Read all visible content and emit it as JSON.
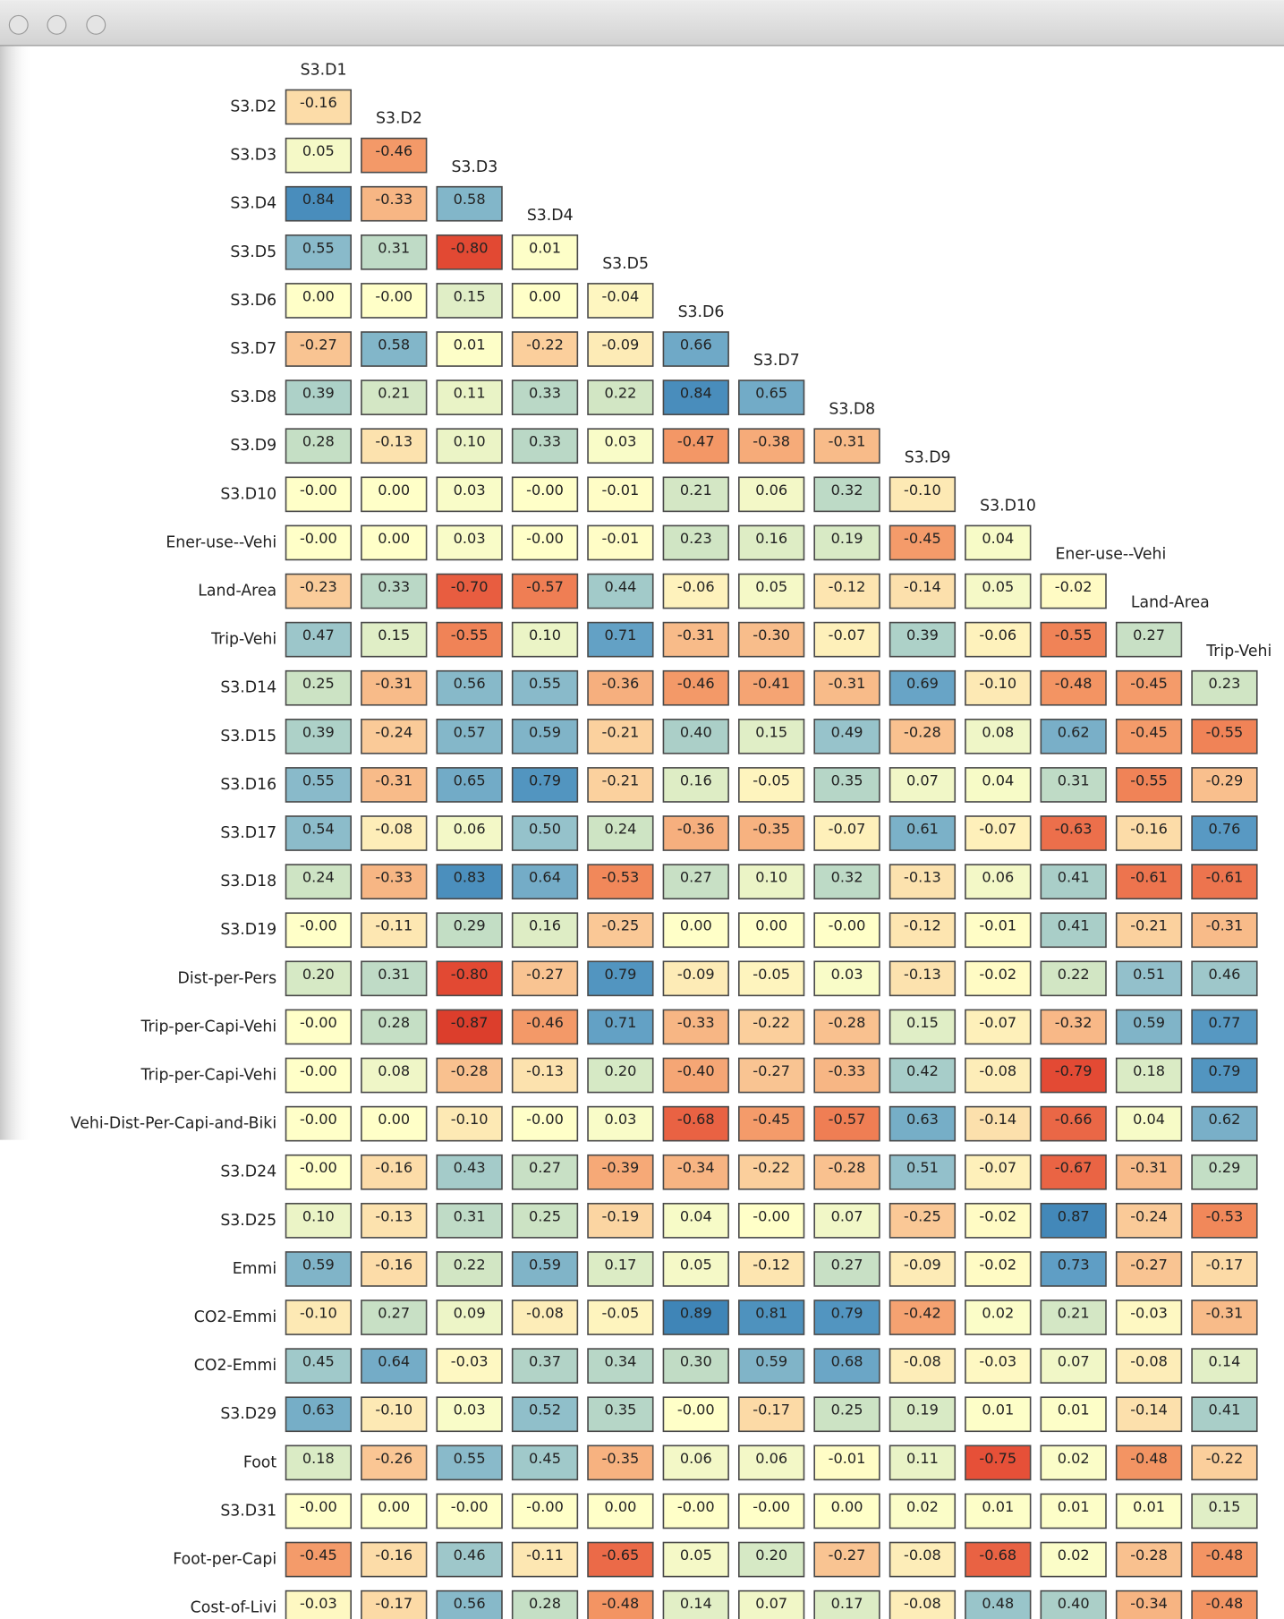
{
  "chart_data": {
    "type": "heatmap",
    "cols": [
      "S3.D1",
      "S3.D2",
      "S3.D3",
      "S3.D4",
      "S3.D5",
      "S3.D6",
      "S3.D7",
      "S3.D8",
      "S3.D9",
      "S3.D10",
      "Ener-use--Vehi",
      "Land-Area",
      "Trip-Vehi"
    ],
    "rows": [
      "S3.D2",
      "S3.D3",
      "S3.D4",
      "S3.D5",
      "S3.D6",
      "S3.D7",
      "S3.D8",
      "S3.D9",
      "S3.D10",
      "Ener-use--Vehi",
      "Land-Area",
      "Trip-Vehi",
      "S3.D14",
      "S3.D15",
      "S3.D16",
      "S3.D17",
      "S3.D18",
      "S3.D19",
      "Dist-per-Pers",
      "Trip-per-Capi-Vehi",
      "Trip-per-Capi-Vehi",
      "Vehi-Dist-Per-Capi-and-Biki",
      "S3.D24",
      "S3.D25",
      "Emmi",
      "CO2-Emmi",
      "CO2-Emmi",
      "S3.D29",
      "Foot",
      "S3.D31",
      "Foot-per-Capi",
      "Cost-of-Livi"
    ],
    "values": [
      [
        -0.16
      ],
      [
        0.05,
        -0.46
      ],
      [
        0.84,
        -0.33,
        0.58
      ],
      [
        0.55,
        0.31,
        -0.8,
        0.01
      ],
      [
        0.0,
        -0.0,
        0.15,
        0.0,
        -0.04
      ],
      [
        -0.27,
        0.58,
        0.01,
        -0.22,
        -0.09,
        0.66
      ],
      [
        0.39,
        0.21,
        0.11,
        0.33,
        0.22,
        0.84,
        0.65
      ],
      [
        0.28,
        -0.13,
        0.1,
        0.33,
        0.03,
        -0.47,
        -0.38,
        -0.31
      ],
      [
        -0.0,
        0.0,
        0.03,
        -0.0,
        -0.01,
        0.21,
        0.06,
        0.32,
        -0.1
      ],
      [
        -0.0,
        0.0,
        0.03,
        -0.0,
        -0.01,
        0.23,
        0.16,
        0.19,
        -0.45,
        0.04
      ],
      [
        -0.23,
        0.33,
        -0.7,
        -0.57,
        0.44,
        -0.06,
        0.05,
        -0.12,
        -0.14,
        0.05,
        -0.02
      ],
      [
        0.47,
        0.15,
        -0.55,
        0.1,
        0.71,
        -0.31,
        -0.3,
        -0.07,
        0.39,
        -0.06,
        -0.55,
        0.27
      ],
      [
        0.25,
        -0.31,
        0.56,
        0.55,
        -0.36,
        -0.46,
        -0.41,
        -0.31,
        0.69,
        -0.1,
        -0.48,
        -0.45,
        0.23
      ],
      [
        0.39,
        -0.24,
        0.57,
        0.59,
        -0.21,
        0.4,
        0.15,
        0.49,
        -0.28,
        0.08,
        0.62,
        -0.45,
        -0.55
      ],
      [
        0.55,
        -0.31,
        0.65,
        0.79,
        -0.21,
        0.16,
        -0.05,
        0.35,
        0.07,
        0.04,
        0.31,
        -0.55,
        -0.29
      ],
      [
        0.54,
        -0.08,
        0.06,
        0.5,
        0.24,
        -0.36,
        -0.35,
        -0.07,
        0.61,
        -0.07,
        -0.63,
        -0.16,
        0.76
      ],
      [
        0.24,
        -0.33,
        0.83,
        0.64,
        -0.53,
        0.27,
        0.1,
        0.32,
        -0.13,
        0.06,
        0.41,
        -0.61,
        -0.61
      ],
      [
        -0.0,
        -0.11,
        0.29,
        0.16,
        -0.25,
        0.0,
        0.0,
        -0.0,
        -0.12,
        -0.01,
        0.41,
        -0.21,
        -0.31
      ],
      [
        0.2,
        0.31,
        -0.8,
        -0.27,
        0.79,
        -0.09,
        -0.05,
        0.03,
        -0.13,
        -0.02,
        0.22,
        0.51,
        0.46
      ],
      [
        -0.0,
        0.28,
        -0.87,
        -0.46,
        0.71,
        -0.33,
        -0.22,
        -0.28,
        0.15,
        -0.07,
        -0.32,
        0.59,
        0.77
      ],
      [
        -0.0,
        0.08,
        -0.28,
        -0.13,
        0.2,
        -0.4,
        -0.27,
        -0.33,
        0.42,
        -0.08,
        -0.79,
        0.18,
        0.79
      ],
      [
        -0.0,
        0.0,
        -0.1,
        -0.0,
        0.03,
        -0.68,
        -0.45,
        -0.57,
        0.63,
        -0.14,
        -0.66,
        0.04,
        0.62
      ],
      [
        -0.0,
        -0.16,
        0.43,
        0.27,
        -0.39,
        -0.34,
        -0.22,
        -0.28,
        0.51,
        -0.07,
        -0.67,
        -0.31,
        0.29
      ],
      [
        0.1,
        -0.13,
        0.31,
        0.25,
        -0.19,
        0.04,
        -0.0,
        0.07,
        -0.25,
        -0.02,
        0.87,
        -0.24,
        -0.53
      ],
      [
        0.59,
        -0.16,
        0.22,
        0.59,
        0.17,
        0.05,
        -0.12,
        0.27,
        -0.09,
        -0.02,
        0.73,
        -0.27,
        -0.17
      ],
      [
        -0.1,
        0.27,
        0.09,
        -0.08,
        -0.05,
        0.89,
        0.81,
        0.79,
        -0.42,
        0.02,
        0.21,
        -0.03,
        -0.31
      ],
      [
        0.45,
        0.64,
        -0.03,
        0.37,
        0.34,
        0.3,
        0.59,
        0.68,
        -0.08,
        -0.03,
        0.07,
        -0.08,
        0.14
      ],
      [
        0.63,
        -0.1,
        0.03,
        0.52,
        0.35,
        -0.0,
        -0.17,
        0.25,
        0.19,
        0.01,
        0.01,
        -0.14,
        0.41
      ],
      [
        0.18,
        -0.26,
        0.55,
        0.45,
        -0.35,
        0.06,
        0.06,
        -0.01,
        0.11,
        -0.75,
        0.02,
        -0.48,
        -0.22
      ],
      [
        -0.0,
        0.0,
        -0.0,
        -0.0,
        0.0,
        -0.0,
        -0.0,
        0.0,
        0.02,
        0.01,
        0.01,
        0.01,
        0.15
      ],
      [
        -0.45,
        -0.16,
        0.46,
        -0.11,
        -0.65,
        0.05,
        0.2,
        -0.27,
        -0.08,
        -0.68,
        0.02,
        -0.28,
        -0.48
      ],
      [
        -0.03,
        -0.17,
        0.56,
        0.28,
        -0.48,
        0.14,
        0.07,
        0.17,
        -0.08,
        0.48,
        0.4,
        -0.34,
        -0.48
      ]
    ],
    "value_labels": [
      [
        "-0.16"
      ],
      [
        "0.05",
        "-0.46"
      ],
      [
        "0.84",
        "-0.33",
        "0.58"
      ],
      [
        "0.55",
        "0.31",
        "-0.80",
        "0.01"
      ],
      [
        "0.00",
        "-0.00",
        "0.15",
        "0.00",
        "-0.04"
      ],
      [
        "-0.27",
        "0.58",
        "0.01",
        "-0.22",
        "-0.09",
        "0.66"
      ],
      [
        "0.39",
        "0.21",
        "0.11",
        "0.33",
        "0.22",
        "0.84",
        "0.65"
      ],
      [
        "0.28",
        "-0.13",
        "0.10",
        "0.33",
        "0.03",
        "-0.47",
        "-0.38",
        "-0.31"
      ],
      [
        "-0.00",
        "0.00",
        "0.03",
        "-0.00",
        "-0.01",
        "0.21",
        "0.06",
        "0.32",
        "-0.10"
      ],
      [
        "-0.00",
        "0.00",
        "0.03",
        "-0.00",
        "-0.01",
        "0.23",
        "0.16",
        "0.19",
        "-0.45",
        "0.04"
      ],
      [
        "-0.23",
        "0.33",
        "-0.70",
        "-0.57",
        "0.44",
        "-0.06",
        "0.05",
        "-0.12",
        "-0.14",
        "0.05",
        "-0.02"
      ],
      [
        "0.47",
        "0.15",
        "-0.55",
        "0.10",
        "0.71",
        "-0.31",
        "-0.30",
        "-0.07",
        "0.39",
        "-0.06",
        "-0.55",
        "0.27"
      ],
      [
        "0.25",
        "-0.31",
        "0.56",
        "0.55",
        "-0.36",
        "-0.46",
        "-0.41",
        "-0.31",
        "0.69",
        "-0.10",
        "-0.48",
        "-0.45",
        "0.23"
      ],
      [
        "0.39",
        "-0.24",
        "0.57",
        "0.59",
        "-0.21",
        "0.40",
        "0.15",
        "0.49",
        "-0.28",
        "0.08",
        "0.62",
        "-0.45",
        "-0.55"
      ],
      [
        "0.55",
        "-0.31",
        "0.65",
        "0.79",
        "-0.21",
        "0.16",
        "-0.05",
        "0.35",
        "0.07",
        "0.04",
        "0.31",
        "-0.55",
        "-0.29"
      ],
      [
        "0.54",
        "-0.08",
        "0.06",
        "0.50",
        "0.24",
        "-0.36",
        "-0.35",
        "-0.07",
        "0.61",
        "-0.07",
        "-0.63",
        "-0.16",
        "0.76"
      ],
      [
        "0.24",
        "-0.33",
        "0.83",
        "0.64",
        "-0.53",
        "0.27",
        "0.10",
        "0.32",
        "-0.13",
        "0.06",
        "0.41",
        "-0.61",
        "-0.61"
      ],
      [
        "-0.00",
        "-0.11",
        "0.29",
        "0.16",
        "-0.25",
        "0.00",
        "0.00",
        "-0.00",
        "-0.12",
        "-0.01",
        "0.41",
        "-0.21",
        "-0.31"
      ],
      [
        "0.20",
        "0.31",
        "-0.80",
        "-0.27",
        "0.79",
        "-0.09",
        "-0.05",
        "0.03",
        "-0.13",
        "-0.02",
        "0.22",
        "0.51",
        "0.46"
      ],
      [
        "-0.00",
        "0.28",
        "-0.87",
        "-0.46",
        "0.71",
        "-0.33",
        "-0.22",
        "-0.28",
        "0.15",
        "-0.07",
        "-0.32",
        "0.59",
        "0.77"
      ],
      [
        "-0.00",
        "0.08",
        "-0.28",
        "-0.13",
        "0.20",
        "-0.40",
        "-0.27",
        "-0.33",
        "0.42",
        "-0.08",
        "-0.79",
        "0.18",
        "0.79"
      ],
      [
        "-0.00",
        "0.00",
        "-0.10",
        "-0.00",
        "0.03",
        "-0.68",
        "-0.45",
        "-0.57",
        "0.63",
        "-0.14",
        "-0.66",
        "0.04",
        "0.62"
      ],
      [
        "-0.00",
        "-0.16",
        "0.43",
        "0.27",
        "-0.39",
        "-0.34",
        "-0.22",
        "-0.28",
        "0.51",
        "-0.07",
        "-0.67",
        "-0.31",
        "0.29"
      ],
      [
        "0.10",
        "-0.13",
        "0.31",
        "0.25",
        "-0.19",
        "0.04",
        "-0.00",
        "0.07",
        "-0.25",
        "-0.02",
        "0.87",
        "-0.24",
        "-0.53"
      ],
      [
        "0.59",
        "-0.16",
        "0.22",
        "0.59",
        "0.17",
        "0.05",
        "-0.12",
        "0.27",
        "-0.09",
        "-0.02",
        "0.73",
        "-0.27",
        "-0.17"
      ],
      [
        "-0.10",
        "0.27",
        "0.09",
        "-0.08",
        "-0.05",
        "0.89",
        "0.81",
        "0.79",
        "-0.42",
        "0.02",
        "0.21",
        "-0.03",
        "-0.31"
      ],
      [
        "0.45",
        "0.64",
        "-0.03",
        "0.37",
        "0.34",
        "0.30",
        "0.59",
        "0.68",
        "-0.08",
        "-0.03",
        "0.07",
        "-0.08",
        "0.14"
      ],
      [
        "0.63",
        "-0.10",
        "0.03",
        "0.52",
        "0.35",
        "-0.00",
        "-0.17",
        "0.25",
        "0.19",
        "0.01",
        "0.01",
        "-0.14",
        "0.41"
      ],
      [
        "0.18",
        "-0.26",
        "0.55",
        "0.45",
        "-0.35",
        "0.06",
        "0.06",
        "-0.01",
        "0.11",
        "-0.75",
        "0.02",
        "-0.48",
        "-0.22"
      ],
      [
        "-0.00",
        "0.00",
        "-0.00",
        "-0.00",
        "0.00",
        "-0.00",
        "-0.00",
        "0.00",
        "0.02",
        "0.01",
        "0.01",
        "0.01",
        "0.15"
      ],
      [
        "-0.45",
        "-0.16",
        "0.46",
        "-0.11",
        "-0.65",
        "0.05",
        "0.20",
        "-0.27",
        "-0.08",
        "-0.68",
        "0.02",
        "-0.28",
        "-0.48"
      ],
      [
        "-0.03",
        "-0.17",
        "0.56",
        "0.28",
        "-0.48",
        "0.14",
        "0.07",
        "0.17",
        "-0.08",
        "0.48",
        "0.40",
        "-0.34",
        "-0.48"
      ]
    ]
  }
}
